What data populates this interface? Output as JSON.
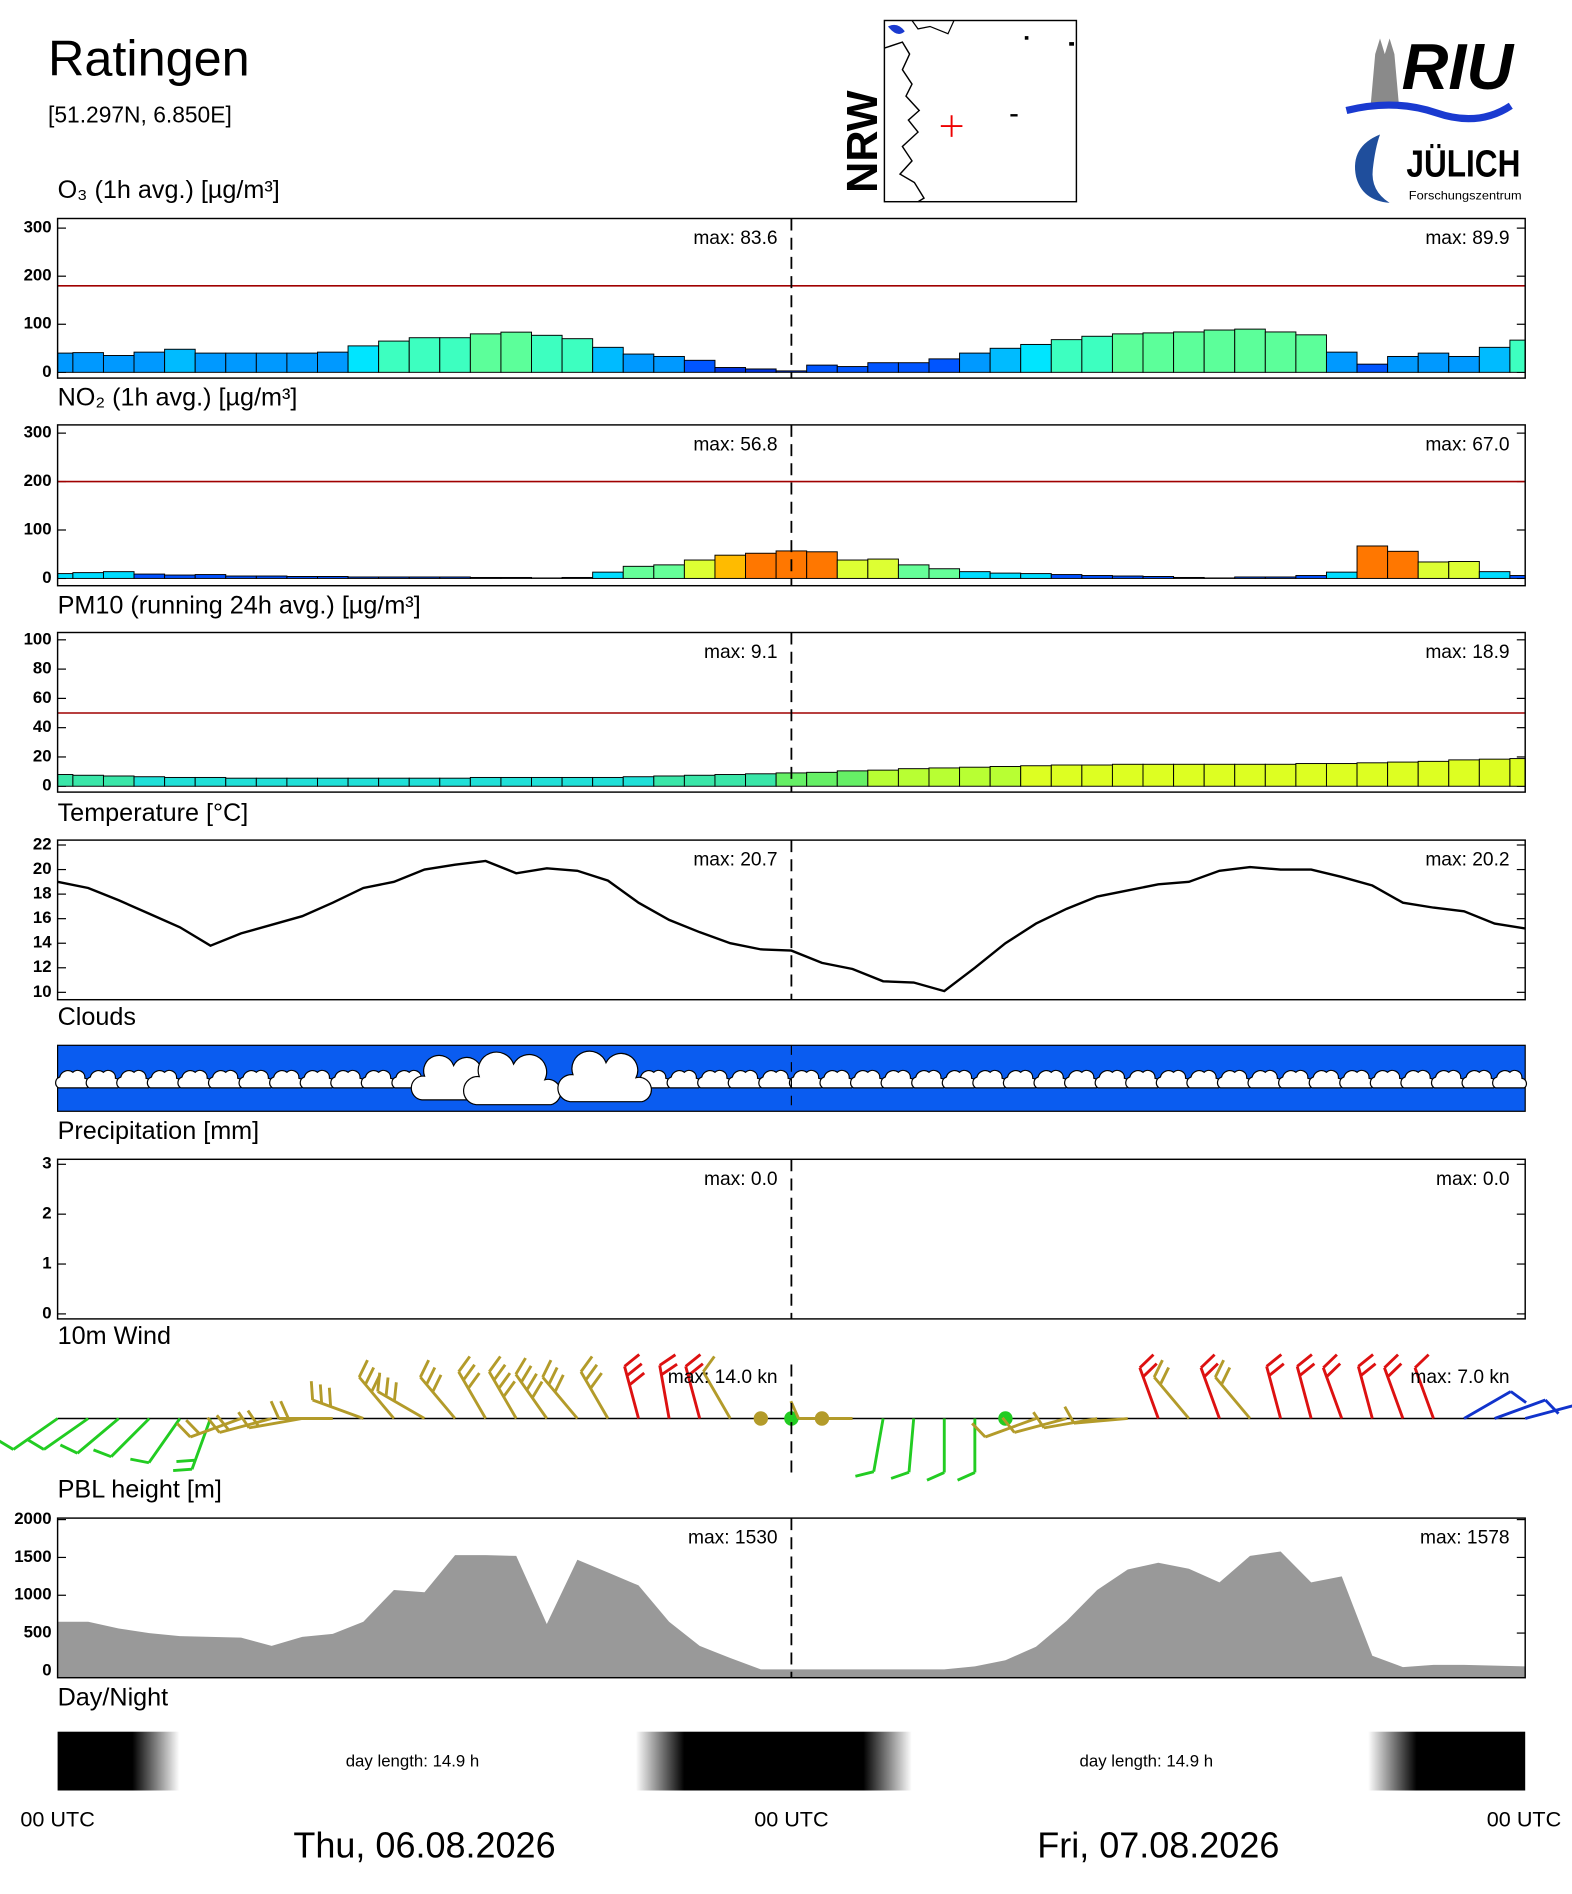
{
  "header": {
    "title": "Ratingen",
    "coords": "[51.297N,  6.850E]",
    "map_label": "NRW",
    "logo_top": "RIU",
    "logo_bottom": "JÜLICH",
    "logo_sub": "Forschungszentrum"
  },
  "chart_data": [
    {
      "type": "bar",
      "title": "O₃ (1h avg.) [µg/m³]",
      "xlim": [
        0,
        48
      ],
      "x": [
        0,
        1,
        2,
        3,
        4,
        5,
        6,
        7,
        8,
        9,
        10,
        11,
        12,
        13,
        14,
        15,
        16,
        17,
        18,
        19,
        20,
        21,
        22,
        23,
        24,
        25,
        26,
        27,
        28,
        29,
        30,
        31,
        32,
        33,
        34,
        35,
        36,
        37,
        38,
        39,
        40,
        41,
        42,
        43,
        44,
        45,
        46,
        47,
        48
      ],
      "values": [
        40,
        41,
        35,
        42,
        48,
        40,
        40,
        40,
        40,
        42,
        55,
        65,
        72,
        72,
        80,
        83.6,
        77,
        70,
        52,
        38,
        33,
        25,
        10,
        7,
        3,
        15,
        12,
        20,
        20,
        28,
        40,
        50,
        58,
        68,
        75,
        80,
        82,
        84,
        88,
        89.9,
        84,
        78,
        42,
        17,
        33,
        40,
        33,
        52,
        67
      ],
      "colors": [
        "#0099ff",
        "#0099ff",
        "#0099ff",
        "#0099ff",
        "#00bbff",
        "#0099ff",
        "#0099ff",
        "#0099ff",
        "#0099ff",
        "#0099ff",
        "#00e5ff",
        "#3dffc0",
        "#3dffc0",
        "#3dffc0",
        "#5cff9a",
        "#5cff9a",
        "#3dffc0",
        "#3dffc0",
        "#00bbff",
        "#0099ff",
        "#0099ff",
        "#0055ff",
        "#0033dd",
        "#0033dd",
        "#0033dd",
        "#0055ff",
        "#0055ff",
        "#0055ff",
        "#0055ff",
        "#0055ff",
        "#0099ff",
        "#00bbff",
        "#00e5ff",
        "#3dffc0",
        "#3dffc0",
        "#5cff9a",
        "#5cff9a",
        "#5cff9a",
        "#5cff9a",
        "#5cff9a",
        "#5cff9a",
        "#5cff9a",
        "#0099ff",
        "#0055ff",
        "#0099ff",
        "#0099ff",
        "#0099ff",
        "#00bbff",
        "#3dffc0"
      ],
      "ylim": [
        -12,
        320
      ],
      "yticks": [
        0,
        100,
        200,
        300
      ],
      "threshold": 180,
      "threshold_color": "#a00000",
      "max_labels": [
        "max:  83.6",
        "max:  89.9"
      ]
    },
    {
      "type": "bar",
      "title": "NO₂ (1h avg.) [µg/m³]",
      "xlim": [
        0,
        48
      ],
      "x": [
        0,
        1,
        2,
        3,
        4,
        5,
        6,
        7,
        8,
        9,
        10,
        11,
        12,
        13,
        14,
        15,
        16,
        17,
        18,
        19,
        20,
        21,
        22,
        23,
        24,
        25,
        26,
        27,
        28,
        29,
        30,
        31,
        32,
        33,
        34,
        35,
        36,
        37,
        38,
        39,
        40,
        41,
        42,
        43,
        44,
        45,
        46,
        47,
        48
      ],
      "values": [
        10,
        12,
        14,
        9,
        7,
        8,
        5,
        5,
        4,
        4,
        3,
        3,
        3,
        3,
        2,
        2,
        1,
        2,
        13,
        25,
        28,
        38,
        48,
        52,
        56.8,
        55,
        38,
        40,
        28,
        20,
        14,
        11,
        10,
        8,
        6,
        5,
        4,
        2,
        1,
        3,
        3,
        6,
        13,
        67.0,
        56,
        34,
        35,
        14,
        6
      ],
      "colors": [
        "#00ddff",
        "#00ddff",
        "#00ddff",
        "#0050ff",
        "#0050ff",
        "#0050ff",
        "#0050ff",
        "#0050ff",
        "#0050ff",
        "#0050ff",
        "#0050ff",
        "#0050ff",
        "#0050ff",
        "#0050ff",
        "#0050ff",
        "#0050ff",
        "#0050ff",
        "#0050ff",
        "#00ddff",
        "#66ff99",
        "#66ff99",
        "#ddff33",
        "#ffbb00",
        "#ff7700",
        "#ff7700",
        "#ff7700",
        "#ddff33",
        "#ddff33",
        "#66ff99",
        "#66ff99",
        "#00ddff",
        "#00ddff",
        "#00ddff",
        "#0050ff",
        "#0050ff",
        "#0050ff",
        "#0050ff",
        "#0050ff",
        "#0050ff",
        "#0050ff",
        "#0050ff",
        "#0050ff",
        "#00ddff",
        "#ff7700",
        "#ff7700",
        "#ddff33",
        "#ddff33",
        "#00ddff",
        "#0050ff"
      ],
      "ylim": [
        -15,
        317
      ],
      "yticks": [
        0,
        100,
        200,
        300
      ],
      "threshold": 200,
      "threshold_color": "#a00000",
      "max_labels": [
        "max:  56.8",
        "max:  67.0"
      ]
    },
    {
      "type": "bar",
      "title": "PM10 (running 24h avg.) [µg/m³]",
      "xlim": [
        0,
        48
      ],
      "x": [
        0,
        1,
        2,
        3,
        4,
        5,
        6,
        7,
        8,
        9,
        10,
        11,
        12,
        13,
        14,
        15,
        16,
        17,
        18,
        19,
        20,
        21,
        22,
        23,
        24,
        25,
        26,
        27,
        28,
        29,
        30,
        31,
        32,
        33,
        34,
        35,
        36,
        37,
        38,
        39,
        40,
        41,
        42,
        43,
        44,
        45,
        46,
        47,
        48
      ],
      "values": [
        8,
        7.5,
        7,
        6.5,
        6,
        6,
        5.5,
        5.5,
        5.5,
        5.5,
        5.5,
        5.5,
        5.5,
        5.5,
        6,
        6,
        6,
        6,
        6,
        6.5,
        7,
        7.5,
        8,
        8.5,
        9.1,
        9.5,
        10.5,
        11,
        12,
        12.5,
        13,
        13.5,
        14,
        14.5,
        14.5,
        15,
        15,
        15,
        15,
        15,
        15,
        15.5,
        15.5,
        16,
        16.5,
        17,
        18,
        18.5,
        18.9
      ],
      "colors": [
        "#3ae6a8",
        "#3ae6a8",
        "#3ae6a8",
        "#20e0d8",
        "#20e0d8",
        "#20e0d8",
        "#20e0d8",
        "#20e0d8",
        "#20e0d8",
        "#20e0d8",
        "#20e0d8",
        "#20e0d8",
        "#20e0d8",
        "#20e0d8",
        "#20e0d8",
        "#20e0d8",
        "#20e0d8",
        "#20e0d8",
        "#20e0d8",
        "#20e0d8",
        "#3ae6a8",
        "#3ae6a8",
        "#3ae6a8",
        "#3ae6a8",
        "#66f066",
        "#66f066",
        "#66f066",
        "#b8ff33",
        "#b8ff33",
        "#b8ff33",
        "#b8ff33",
        "#b8ff33",
        "#ddff22",
        "#ddff22",
        "#ddff22",
        "#ddff22",
        "#ddff22",
        "#ddff22",
        "#ddff22",
        "#ddff22",
        "#ddff22",
        "#ddff22",
        "#ddff22",
        "#ddff22",
        "#ddff22",
        "#ddff22",
        "#ddff22",
        "#ddff22",
        "#ddff22"
      ],
      "ylim": [
        -4,
        105
      ],
      "yticks": [
        0,
        20,
        40,
        60,
        80,
        100
      ],
      "threshold": 50,
      "threshold_color": "#a00000",
      "max_labels": [
        "max:  9.1",
        "max:  18.9"
      ]
    },
    {
      "type": "line",
      "title": "Temperature [°C]",
      "xlim": [
        0,
        48
      ],
      "color": "#000000",
      "x": [
        0,
        1,
        2,
        3,
        4,
        5,
        6,
        7,
        8,
        9,
        10,
        11,
        12,
        13,
        14,
        15,
        16,
        17,
        18,
        19,
        20,
        21,
        22,
        23,
        24,
        25,
        26,
        27,
        28,
        29,
        30,
        31,
        32,
        33,
        34,
        35,
        36,
        37,
        38,
        39,
        40,
        41,
        42,
        43,
        44,
        45,
        46,
        47,
        48
      ],
      "values": [
        19.0,
        18.5,
        17.5,
        16.4,
        15.3,
        13.8,
        14.8,
        15.5,
        16.2,
        17.3,
        18.5,
        19.0,
        20.0,
        20.4,
        20.7,
        19.7,
        20.1,
        19.9,
        19.1,
        17.3,
        15.9,
        14.9,
        14.0,
        13.5,
        13.4,
        12.4,
        11.9,
        10.9,
        10.8,
        10.1,
        12.0,
        14.0,
        15.6,
        16.8,
        17.8,
        18.3,
        18.8,
        19.0,
        19.9,
        20.2,
        20.0,
        20.0,
        19.4,
        18.7,
        17.3,
        16.9,
        16.6,
        15.6,
        15.2
      ],
      "ylim": [
        9.4,
        22.4
      ],
      "yticks": [
        10,
        12,
        14,
        16,
        18,
        20,
        22
      ],
      "max_labels": [
        "max:  20.7",
        "max:  20.2"
      ]
    },
    {
      "type": "clouds",
      "title": "Clouds",
      "background": "#0a5cf0"
    },
    {
      "type": "bar",
      "title": "Precipitation [mm]",
      "xlim": [
        0,
        48
      ],
      "color": "#0000ff",
      "x": [
        0,
        1,
        2,
        3,
        4,
        5,
        6,
        7,
        8,
        9,
        10,
        11,
        12,
        13,
        14,
        15,
        16,
        17,
        18,
        19,
        20,
        21,
        22,
        23,
        24,
        25,
        26,
        27,
        28,
        29,
        30,
        31,
        32,
        33,
        34,
        35,
        36,
        37,
        38,
        39,
        40,
        41,
        42,
        43,
        44,
        45,
        46,
        47,
        48
      ],
      "values": [
        0,
        0,
        0,
        0,
        0,
        0,
        0,
        0,
        0,
        0,
        0,
        0,
        0,
        0,
        0,
        0,
        0,
        0,
        0,
        0,
        0,
        0,
        0,
        0,
        0,
        0,
        0,
        0,
        0,
        0,
        0,
        0,
        0,
        0,
        0,
        0,
        0,
        0,
        0,
        0,
        0,
        0,
        0,
        0,
        0,
        0,
        0,
        0,
        0
      ],
      "ylim": [
        -0.1,
        3.1
      ],
      "yticks": [
        0,
        1,
        2,
        3
      ],
      "max_labels": [
        "max:  0.0",
        "max:  0.0"
      ]
    },
    {
      "type": "barb",
      "title": "10m Wind",
      "xlim": [
        0,
        48
      ],
      "x": [
        0,
        1,
        2,
        3,
        4,
        5,
        6,
        7,
        8,
        9,
        10,
        11,
        12,
        13,
        14,
        15,
        16,
        17,
        18,
        19,
        20,
        21,
        22,
        23,
        24,
        25,
        26,
        27,
        28,
        29,
        30,
        31,
        32,
        33,
        34,
        35,
        36,
        37,
        38,
        39,
        40,
        41,
        42,
        43,
        44,
        45,
        46,
        47,
        48
      ],
      "speed": [
        4,
        4,
        4,
        4,
        4,
        5,
        5,
        6,
        6,
        7,
        9,
        12,
        12,
        12,
        12,
        14.0,
        13,
        12,
        9,
        9,
        8,
        6,
        3,
        0,
        0,
        0,
        1,
        3,
        3,
        3,
        3,
        0,
        3,
        4,
        4,
        4,
        6,
        6,
        6,
        6,
        7.0,
        6,
        6,
        5,
        5,
        3,
        3,
        3,
        3
      ],
      "direction": [
        235,
        235,
        230,
        225,
        215,
        200,
        250,
        255,
        260,
        270,
        290,
        320,
        300,
        320,
        330,
        330,
        325,
        320,
        330,
        345,
        350,
        345,
        330,
        0,
        0,
        0,
        270,
        190,
        185,
        180,
        180,
        0,
        250,
        255,
        260,
        265,
        340,
        320,
        340,
        320,
        345,
        345,
        340,
        345,
        340,
        340,
        60,
        70,
        75
      ],
      "colors": [
        "#22cc22",
        "#22cc22",
        "#22cc22",
        "#22cc22",
        "#22cc22",
        "#22cc22",
        "#b39b2a",
        "#b39b2a",
        "#b39b2a",
        "#b39b2a",
        "#b39b2a",
        "#b39b2a",
        "#b39b2a",
        "#b39b2a",
        "#b39b2a",
        "#b39b2a",
        "#b39b2a",
        "#b39b2a",
        "#b39b2a",
        "#dd1111",
        "#dd1111",
        "#dd1111",
        "#b39b2a",
        "#b39b2a",
        "#22cc22",
        "#b39b2a",
        "#b39b2a",
        "#22cc22",
        "#22cc22",
        "#22cc22",
        "#22cc22",
        "#22cc22",
        "#b39b2a",
        "#b39b2a",
        "#b39b2a",
        "#b39b2a",
        "#dd1111",
        "#b39b2a",
        "#dd1111",
        "#b39b2a",
        "#dd1111",
        "#dd1111",
        "#dd1111",
        "#dd1111",
        "#dd1111",
        "#dd1111",
        "#1133cc",
        "#1133cc",
        "#1133cc"
      ],
      "max_labels": [
        "max:  14.0 kn",
        "max:  7.0 kn"
      ]
    },
    {
      "type": "area",
      "title": "PBL height [m]",
      "xlim": [
        0,
        48
      ],
      "color": "#999999",
      "x": [
        0,
        1,
        2,
        3,
        4,
        5,
        6,
        7,
        8,
        9,
        10,
        11,
        12,
        13,
        14,
        15,
        16,
        17,
        18,
        19,
        20,
        21,
        22,
        23,
        24,
        25,
        26,
        27,
        28,
        29,
        30,
        31,
        32,
        33,
        34,
        35,
        36,
        37,
        38,
        39,
        40,
        41,
        42,
        43,
        44,
        45,
        46,
        47,
        48
      ],
      "values": [
        650,
        650,
        560,
        500,
        460,
        450,
        440,
        330,
        450,
        490,
        650,
        1070,
        1040,
        1530,
        1530,
        1520,
        620,
        1470,
        1300,
        1130,
        650,
        330,
        170,
        20,
        20,
        20,
        20,
        20,
        20,
        20,
        60,
        140,
        320,
        660,
        1070,
        1340,
        1430,
        1350,
        1170,
        1520,
        1578,
        1170,
        1250,
        200,
        50,
        80,
        80,
        70,
        60
      ],
      "ylim": [
        -90,
        2020
      ],
      "yticks": [
        0,
        500,
        1000,
        1500,
        2000
      ],
      "max_labels": [
        "max:  1530",
        "max:  1578"
      ]
    },
    {
      "type": "daynight",
      "title": "Day/Night",
      "labels": [
        "day length:  14.9 h",
        "day length:  14.9 h"
      ]
    }
  ],
  "footer": {
    "xlim": [
      0,
      48
    ],
    "xticks": [
      {
        "value": 0,
        "label": "00 UTC"
      },
      {
        "value": 24,
        "label": "00 UTC"
      },
      {
        "value": 48,
        "label": "00 UTC"
      }
    ],
    "dates": [
      "Thu, 06.08.2026",
      "Fri, 07.08.2026"
    ]
  }
}
